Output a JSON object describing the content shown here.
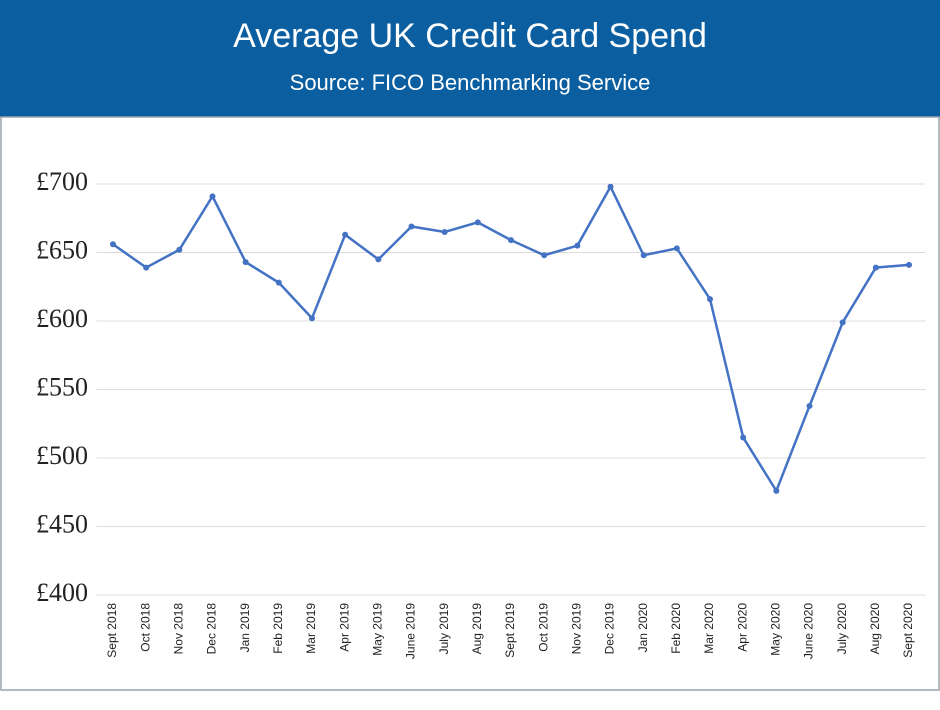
{
  "chart_data": {
    "type": "line",
    "title": "Average UK Credit Card Spend",
    "subtitle": "Source: FICO Benchmarking Service",
    "categories": [
      "Sept 2018",
      "Oct 2018",
      "Nov 2018",
      "Dec 2018",
      "Jan 2019",
      "Feb 2019",
      "Mar 2019",
      "Apr 2019",
      "May 2019",
      "June 2019",
      "July 2019",
      "Aug 2019",
      "Sept 2019",
      "Oct 2019",
      "Nov 2019",
      "Dec 2019",
      "Jan 2020",
      "Feb 2020",
      "Mar 2020",
      "Apr 2020",
      "May 2020",
      "June 2020",
      "July 2020",
      "Aug 2020",
      "Sept 2020"
    ],
    "values": [
      656,
      639,
      652,
      691,
      643,
      628,
      602,
      663,
      645,
      669,
      665,
      672,
      659,
      648,
      655,
      698,
      648,
      653,
      616,
      515,
      476,
      538,
      599,
      639,
      641
    ],
    "color": "#4472c4",
    "ylim": [
      400,
      700
    ],
    "yticks": [
      {
        "value": 400,
        "label": "£400"
      },
      {
        "value": 450,
        "label": "£450"
      },
      {
        "value": 500,
        "label": "£500"
      },
      {
        "value": 550,
        "label": "£550"
      },
      {
        "value": 600,
        "label": "£600"
      },
      {
        "value": 650,
        "label": "£650"
      },
      {
        "value": 700,
        "label": "£700"
      }
    ],
    "grid": true
  }
}
